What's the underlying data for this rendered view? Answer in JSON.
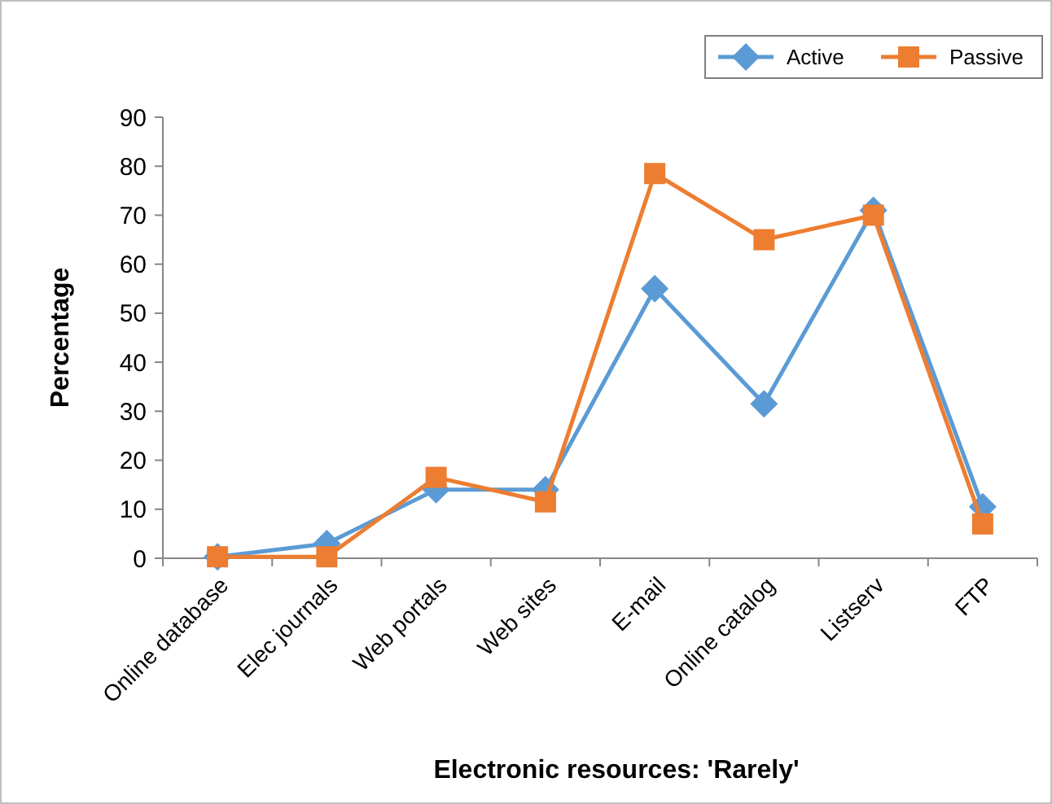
{
  "chart_data": {
    "type": "line",
    "xlabel": "Electronic resources: 'Rarely'",
    "ylabel": "Percentage",
    "categories": [
      "Online database",
      "Elec journals",
      "Web portals",
      "Web sites",
      "E-mail",
      "Online catalog",
      "Listserv",
      "FTP"
    ],
    "series": [
      {
        "name": "Active",
        "color": "#5b9bd5",
        "marker": "diamond",
        "values": [
          0.3,
          3,
          14,
          14,
          55,
          31.5,
          71,
          10.5
        ]
      },
      {
        "name": "Passive",
        "color": "#ed7d31",
        "marker": "square",
        "values": [
          0.3,
          0.3,
          16.5,
          11.5,
          78.5,
          65,
          70,
          7
        ]
      }
    ],
    "ylim": [
      0,
      90
    ],
    "yticks": [
      0,
      10,
      20,
      30,
      40,
      50,
      60,
      70,
      80,
      90
    ],
    "legend": "top right",
    "grid": false
  }
}
